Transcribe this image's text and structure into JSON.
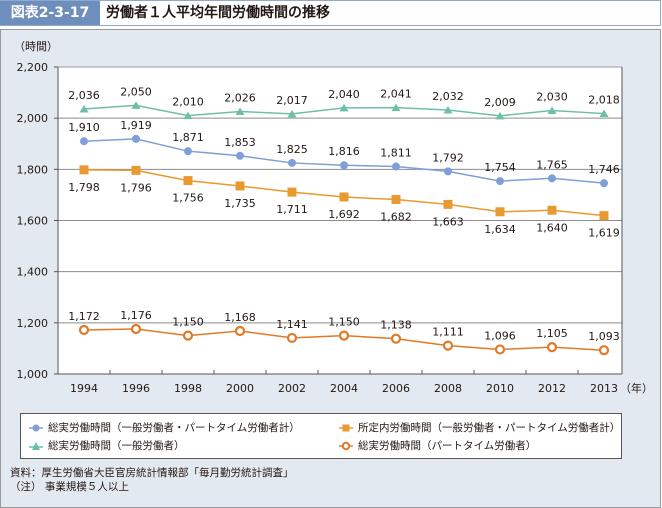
{
  "header": {
    "figure_label": "図表2-3-17",
    "title": "労働者１人平均年間労働時間の推移"
  },
  "colors": {
    "header_bg": "#6e8fbd",
    "panel_bg": "#e3e9f0",
    "blue": "#7f9fd8",
    "orange_square": "#e89a30",
    "teal": "#6fbfa8",
    "orange_circle": "#e07a28"
  },
  "chart_data": {
    "type": "line",
    "title": "労働者１人平均年間労働時間の推移",
    "ylabel": "（時間）",
    "xlabel": "（年）",
    "ylim": [
      1000,
      2200
    ],
    "yticks": [
      1000,
      1200,
      1400,
      1600,
      1800,
      2000,
      2200
    ],
    "ytick_labels": [
      "1,000",
      "1,200",
      "1,400",
      "1,600",
      "1,800",
      "2,000",
      "2,200"
    ],
    "gridlines": [
      1200,
      1400,
      1600,
      1800,
      2000
    ],
    "grid": true,
    "categories": [
      "1994",
      "1996",
      "1998",
      "2000",
      "2002",
      "2004",
      "2006",
      "2008",
      "2010",
      "2012",
      "2013"
    ],
    "x_unit_label": "（年）",
    "legend_position": "bottom",
    "series": [
      {
        "name": "総実労働時間（一般労働者・パートタイム労働者計）",
        "marker": "circle-filled",
        "color": "#7f9fd8",
        "values": [
          1910,
          1919,
          1871,
          1853,
          1825,
          1816,
          1811,
          1792,
          1754,
          1765,
          1746
        ],
        "labels": [
          "1,910",
          "1,919",
          "1,871",
          "1,853",
          "1,825",
          "1,816",
          "1,811",
          "1,792",
          "1,754",
          "1,765",
          "1,746"
        ],
        "label_position": "above"
      },
      {
        "name": "所定内労働時間（一般労働者・パートタイム労働者計）",
        "marker": "square",
        "color": "#e89a30",
        "values": [
          1798,
          1796,
          1756,
          1735,
          1711,
          1692,
          1682,
          1663,
          1634,
          1640,
          1619
        ],
        "labels": [
          "1,798",
          "1,796",
          "1,756",
          "1,735",
          "1,711",
          "1,692",
          "1,682",
          "1,663",
          "1,634",
          "1,640",
          "1,619"
        ],
        "label_position": "below"
      },
      {
        "name": "総実労働時間（一般労働者）",
        "marker": "triangle",
        "color": "#6fbfa8",
        "values": [
          2036,
          2050,
          2010,
          2026,
          2017,
          2040,
          2041,
          2032,
          2009,
          2030,
          2018
        ],
        "labels": [
          "2,036",
          "2,050",
          "2,010",
          "2,026",
          "2,017",
          "2,040",
          "2,041",
          "2,032",
          "2,009",
          "2,030",
          "2,018"
        ],
        "label_position": "above"
      },
      {
        "name": "総実労働時間（パートタイム労働者）",
        "marker": "circle-open",
        "color": "#e07a28",
        "values": [
          1172,
          1176,
          1150,
          1168,
          1141,
          1150,
          1138,
          1111,
          1096,
          1105,
          1093
        ],
        "labels": [
          "1,172",
          "1,176",
          "1,150",
          "1,168",
          "1,141",
          "1,150",
          "1,138",
          "1,111",
          "1,096",
          "1,105",
          "1,093"
        ],
        "label_position": "above"
      }
    ]
  },
  "legend": {
    "items": [
      {
        "label": "総実労働時間（一般労働者・パートタイム労働者計）",
        "icon": "circle-filled-icon"
      },
      {
        "label": "所定内労働時間（一般労働者・パートタイム労働者計）",
        "icon": "square-icon"
      },
      {
        "label": "総実労働時間（一般労働者）",
        "icon": "triangle-icon"
      },
      {
        "label": "総実労働時間（パートタイム労働者）",
        "icon": "circle-open-icon"
      }
    ]
  },
  "notes": {
    "source": "資料：厚生労働省大臣官房統計情報部「毎月勤労統計調査」",
    "note": "（注） 事業規模５人以上"
  }
}
